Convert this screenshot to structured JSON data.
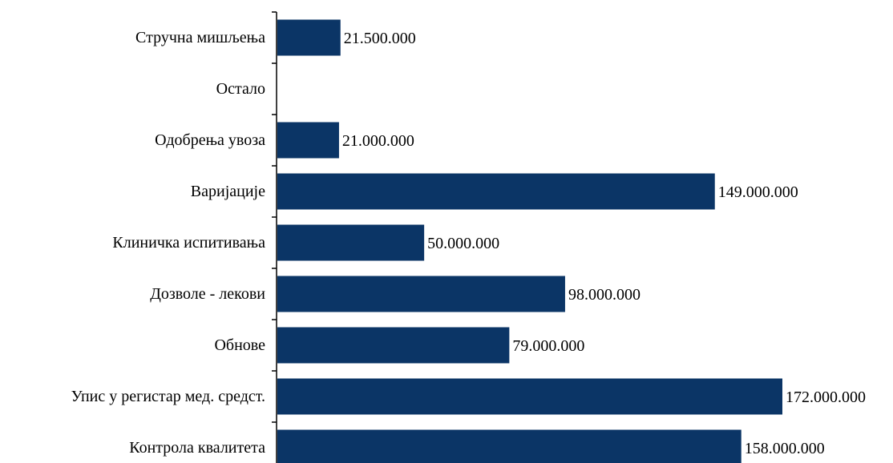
{
  "chart_data": {
    "type": "bar",
    "orientation": "horizontal",
    "categories": [
      "Стручна мишљења",
      "Остало",
      "Одобрења увоза",
      "Варијације",
      "Клиничка испитивања",
      "Дозволе - лекови",
      "Обнове",
      "Упис у регистар мед. средст.",
      "Контрола квалитета"
    ],
    "values": [
      21500000,
      0,
      21000000,
      149000000,
      50000000,
      98000000,
      79000000,
      172000000,
      158000000
    ],
    "value_labels": [
      "21.500.000",
      "",
      "21.000.000",
      "149.000.000",
      "50.000.000",
      "98.000.000",
      "79.000.000",
      "172.000.000",
      "158.000.000"
    ],
    "xlim": [
      0,
      172000000
    ],
    "bar_color": "#0b3566",
    "grid": false,
    "legend": "none",
    "title": "",
    "xlabel": "",
    "ylabel": ""
  }
}
